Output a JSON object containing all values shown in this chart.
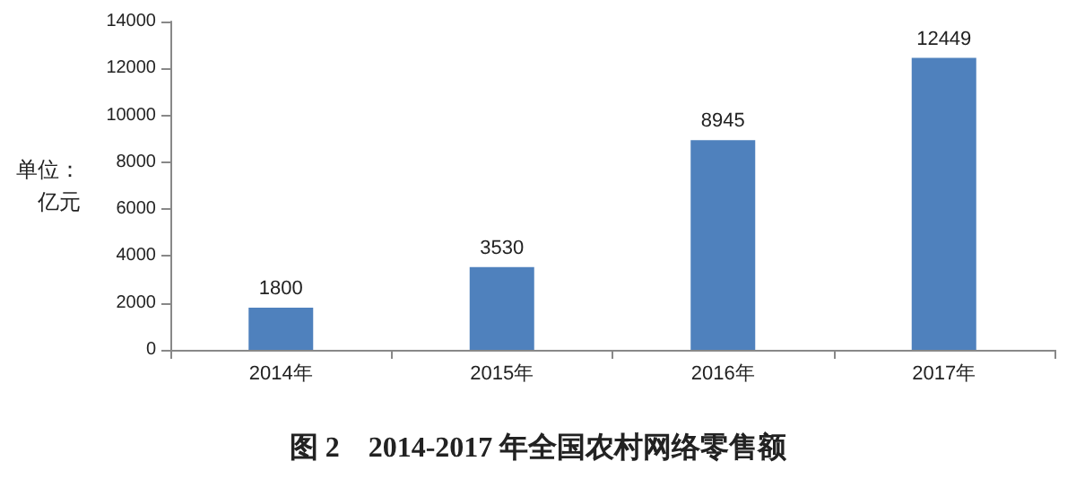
{
  "chart_data": {
    "type": "bar",
    "title": "图 2    2014-2017 年全国农村网络零售额",
    "ylabel": "单位：亿元",
    "categories": [
      "2014年",
      "2015年",
      "2016年",
      "2017年"
    ],
    "values": [
      1800,
      3530,
      8945,
      12449
    ],
    "color": "#4f81bd",
    "ylim": [
      0,
      14000
    ],
    "yticks": [
      0,
      2000,
      4000,
      6000,
      8000,
      10000,
      12000,
      14000
    ],
    "grid": false,
    "data_labels": true
  }
}
